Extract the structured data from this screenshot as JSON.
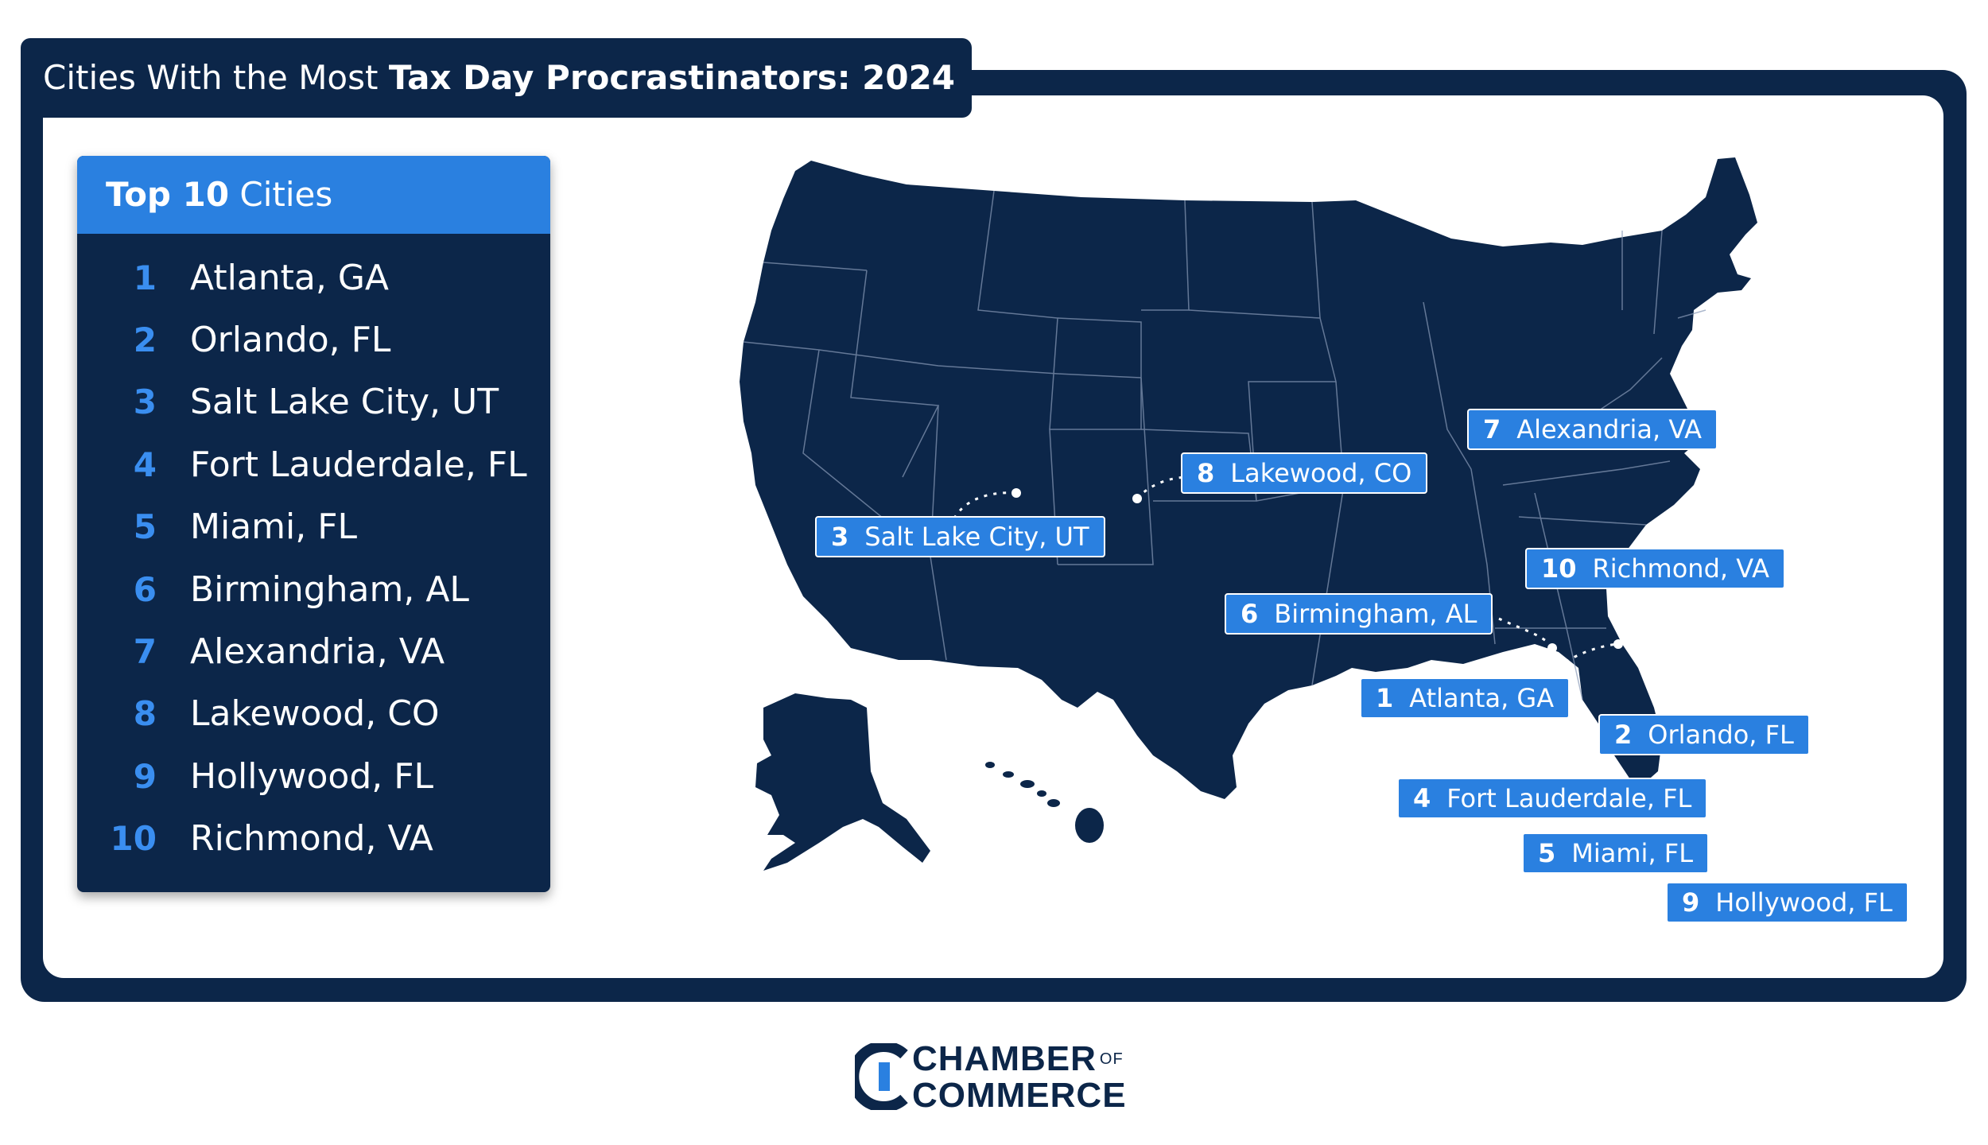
{
  "title": {
    "prefix": "Cities With the Most",
    "bold": "Tax Day Procrastinators: 2024"
  },
  "panel": {
    "head_bold": "Top 10",
    "head_rest": "Cities",
    "items": [
      {
        "rank": "1",
        "city": "Atlanta, GA"
      },
      {
        "rank": "2",
        "city": "Orlando, FL"
      },
      {
        "rank": "3",
        "city": "Salt Lake City, UT"
      },
      {
        "rank": "4",
        "city": "Fort Lauderdale, FL"
      },
      {
        "rank": "5",
        "city": "Miami, FL"
      },
      {
        "rank": "6",
        "city": "Birmingham, AL"
      },
      {
        "rank": "7",
        "city": "Alexandria, VA"
      },
      {
        "rank": "8",
        "city": "Lakewood, CO"
      },
      {
        "rank": "9",
        "city": "Hollywood, FL"
      },
      {
        "rank": "10",
        "city": "Richmond, VA"
      }
    ]
  },
  "map_labels": [
    {
      "rank": "7",
      "city": "Alexandria, VA"
    },
    {
      "rank": "8",
      "city": "Lakewood, CO"
    },
    {
      "rank": "3",
      "city": "Salt Lake City, UT"
    },
    {
      "rank": "10",
      "city": "Richmond, VA"
    },
    {
      "rank": "6",
      "city": "Birmingham, AL"
    },
    {
      "rank": "1",
      "city": "Atlanta, GA"
    },
    {
      "rank": "2",
      "city": "Orlando, FL"
    },
    {
      "rank": "4",
      "city": "Fort Lauderdale, FL"
    },
    {
      "rank": "5",
      "city": "Miami, FL"
    },
    {
      "rank": "9",
      "city": "Hollywood, FL"
    }
  ],
  "logo": {
    "line1": "CHAMBER",
    "of": "OF",
    "line2": "COMMERCE"
  },
  "colors": {
    "navy": "#0c2649",
    "accent_blue": "#2a80e0",
    "rank_blue": "#3a8ef0",
    "background": "#ffffff"
  }
}
